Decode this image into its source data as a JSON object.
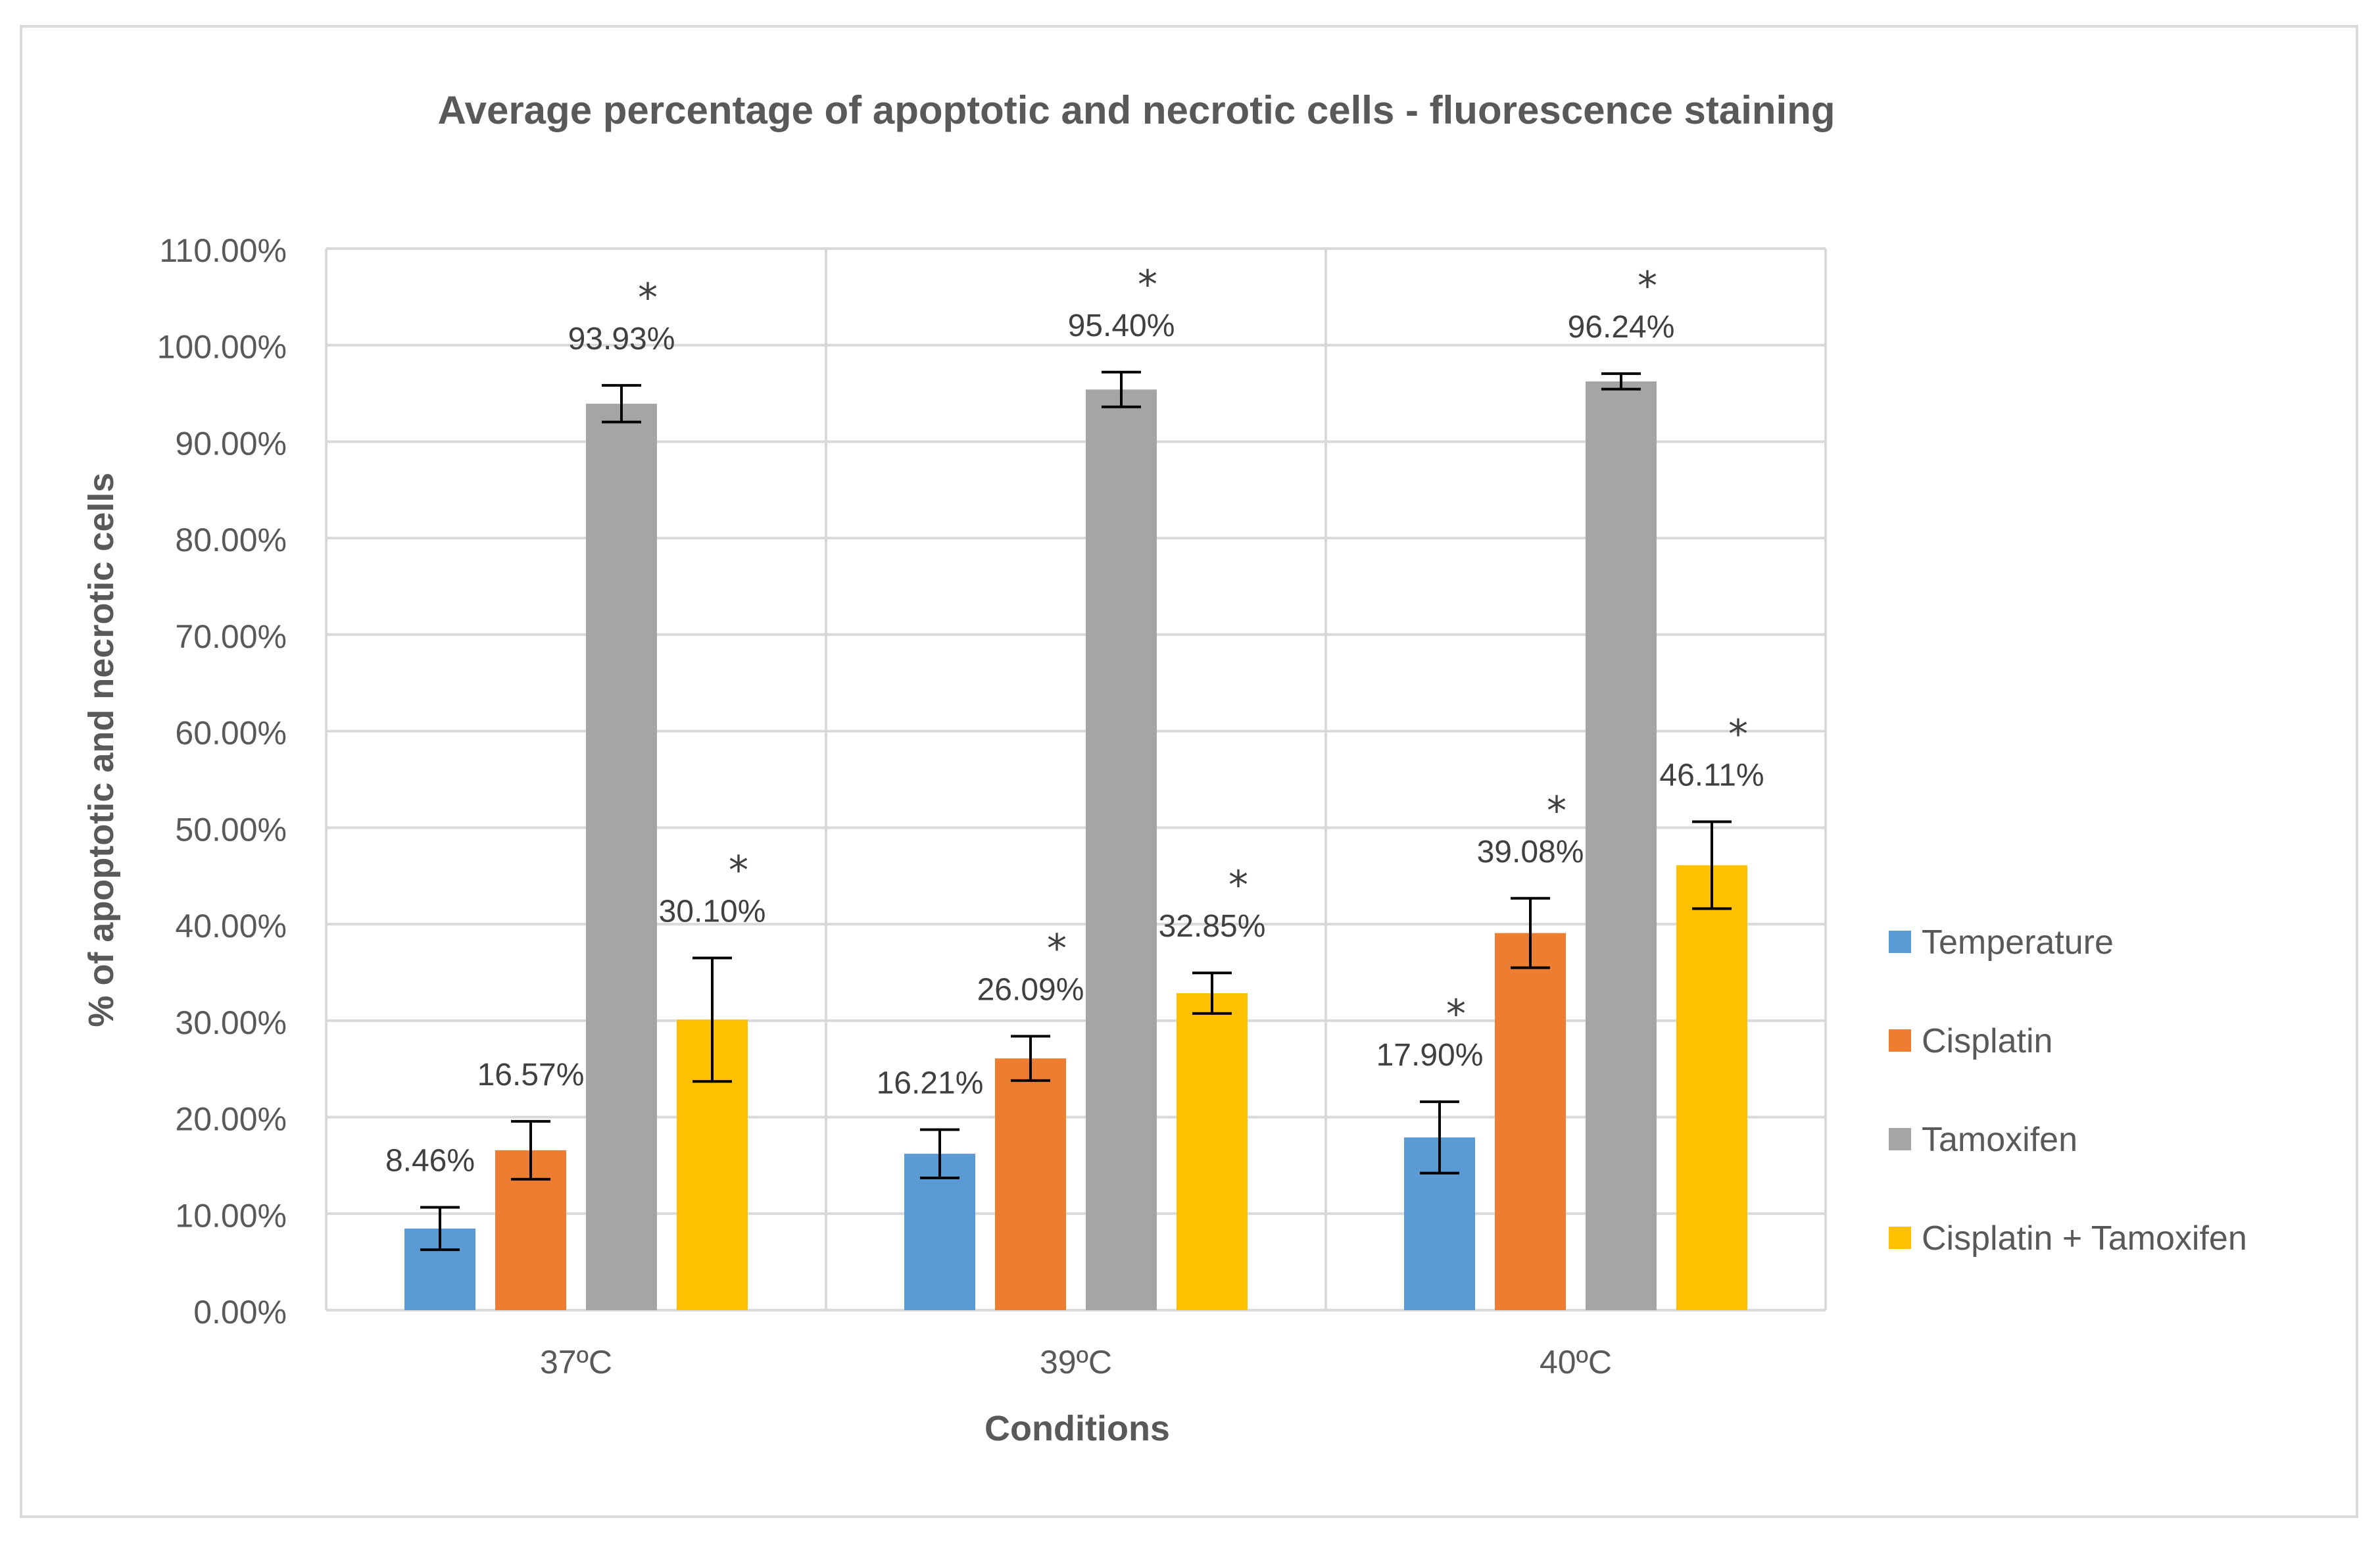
{
  "chart_data": {
    "type": "bar",
    "title": "Average percentage of apoptotic and necrotic cells - fluorescence staining",
    "xlabel": "Conditions",
    "ylabel": "% of apoptotic and necrotic cells",
    "categories": [
      "37ºC",
      "39ºC",
      "40ºC"
    ],
    "ylim": [
      0,
      110
    ],
    "y_ticks": [
      0,
      10,
      20,
      30,
      40,
      50,
      60,
      70,
      80,
      90,
      100,
      110
    ],
    "y_tick_labels": [
      "0.00%",
      "10.00%",
      "20.00%",
      "30.00%",
      "40.00%",
      "50.00%",
      "60.00%",
      "70.00%",
      "80.00%",
      "90.00%",
      "100.00%",
      "110.00%"
    ],
    "grid": true,
    "legend_position": "right",
    "series": [
      {
        "name": "Temperature",
        "color": "#5b9bd5",
        "values": [
          8.46,
          16.21,
          17.9
        ],
        "labels": [
          "8.46%",
          "16.21%",
          "17.90%"
        ],
        "error": [
          2.2,
          2.5,
          3.7
        ],
        "significant": [
          false,
          false,
          true
        ]
      },
      {
        "name": "Cisplatin",
        "color": "#ed7d31",
        "values": [
          16.57,
          26.09,
          39.08
        ],
        "labels": [
          "16.57%",
          "26.09%",
          "39.08%"
        ],
        "error": [
          3.0,
          2.3,
          3.6
        ],
        "significant": [
          false,
          true,
          true
        ]
      },
      {
        "name": "Tamoxifen",
        "color": "#a5a5a5",
        "values": [
          93.93,
          95.4,
          96.24
        ],
        "labels": [
          "93.93%",
          "95.40%",
          "96.24%"
        ],
        "error": [
          1.9,
          1.8,
          0.8
        ],
        "significant": [
          true,
          true,
          true
        ]
      },
      {
        "name": "Cisplatin + Tamoxifen",
        "color": "#ffc000",
        "values": [
          30.1,
          32.85,
          46.11
        ],
        "labels": [
          "30.10%",
          "32.85%",
          "46.11%"
        ],
        "error": [
          6.4,
          2.1,
          4.5
        ],
        "significant": [
          true,
          true,
          true
        ]
      }
    ],
    "significance_marker": "*"
  }
}
